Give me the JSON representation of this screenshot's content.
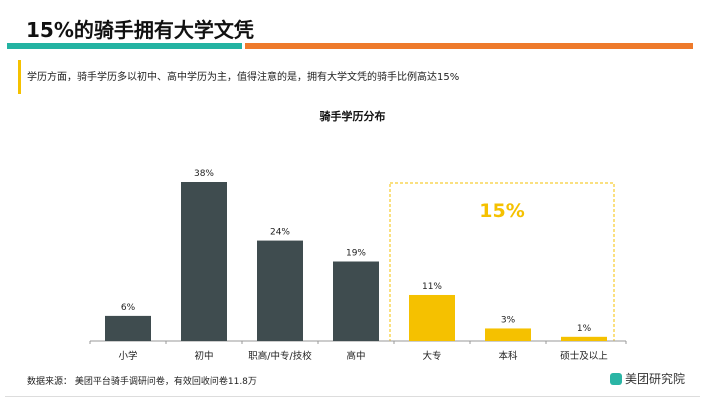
{
  "title": "15%的骑手拥有大学文凭",
  "subtitle": "学历方面，骑手学历多以初中、高中学历为主，值得注意的是，拥有大学文凭的骑手比例高达15%",
  "colors": {
    "teal": "#23b3a2",
    "orange": "#ee7a2b",
    "dark_bar": "#3f4c4f",
    "highlight_bar": "#f5c100"
  },
  "highlight_label": "15%",
  "source": "数据来源： 美团平台骑手调研问卷，有效回收问卷11.8万",
  "logo": "美团研究院",
  "chart_data": {
    "type": "bar",
    "title": "骑手学历分布",
    "categories": [
      "小学",
      "初中",
      "职高/中专/技校",
      "高中",
      "大专",
      "本科",
      "硕士及以上"
    ],
    "values": [
      6,
      38,
      24,
      19,
      11,
      3,
      1
    ],
    "data_labels": [
      "6%",
      "38%",
      "24%",
      "19%",
      "11%",
      "3%",
      "1%"
    ],
    "highlighted": [
      "大专",
      "本科",
      "硕士及以上"
    ],
    "ylim": [
      0,
      40
    ],
    "grid": false
  }
}
